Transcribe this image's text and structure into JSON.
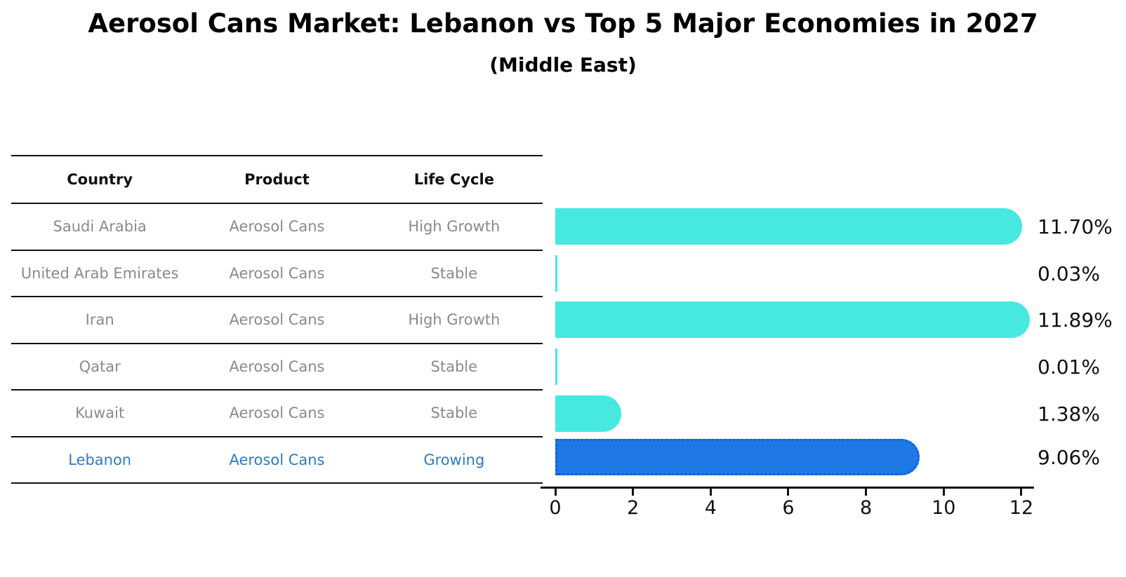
{
  "title": "Aerosol Cans Market: Lebanon vs Top 5 Major Economies in 2027",
  "subtitle": "(Middle East)",
  "table": {
    "headers": [
      "Country",
      "Product",
      "Life Cycle"
    ],
    "rows": [
      {
        "country": "Saudi Arabia",
        "product": "Aerosol Cans",
        "life_cycle": "High Growth"
      },
      {
        "country": "United Arab Emirates",
        "product": "Aerosol Cans",
        "life_cycle": "Stable"
      },
      {
        "country": "Iran",
        "product": "Aerosol Cans",
        "life_cycle": "High Growth"
      },
      {
        "country": "Qatar",
        "product": "Aerosol Cans",
        "life_cycle": "Stable"
      },
      {
        "country": "Kuwait",
        "product": "Aerosol Cans",
        "life_cycle": "Stable"
      },
      {
        "country": "Lebanon",
        "product": "Aerosol Cans",
        "life_cycle": "Growing"
      }
    ],
    "highlight_row_index": 5
  },
  "chart_data": {
    "type": "bar",
    "orientation": "horizontal",
    "title": "Aerosol Cans Market: Lebanon vs Top 5 Major Economies in 2027",
    "subtitle": "(Middle East)",
    "categories": [
      "Saudi Arabia",
      "United Arab Emirates",
      "Iran",
      "Qatar",
      "Kuwait",
      "Lebanon"
    ],
    "values": [
      11.7,
      0.03,
      11.89,
      0.01,
      1.38,
      9.06
    ],
    "value_labels": [
      "11.70%",
      "0.03%",
      "11.89%",
      "0.01%",
      "1.38%",
      "9.06%"
    ],
    "xticks": [
      0,
      2,
      4,
      6,
      8,
      10,
      12
    ],
    "xlim": [
      0,
      12.65
    ],
    "grid": false,
    "legend": false,
    "highlight_index": 5,
    "colors": {
      "bar_default": "#47e8e0",
      "bar_highlight": "#1e79e6",
      "bar_highlight_border": "#0f5fd7",
      "table_text": "#8a8a8a",
      "table_highlight_text": "#2b7bc9",
      "axis": "#111111",
      "label_text": "#111111"
    }
  }
}
